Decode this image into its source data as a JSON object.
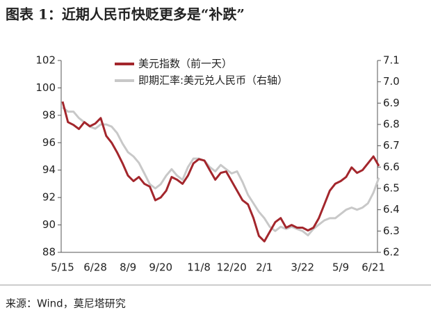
{
  "chart_data": {
    "type": "line",
    "title": "图表 1：近期人民币快贬更多是“补跌”",
    "source": "来源：Wind，莫尼塔研究",
    "categories": [
      "5/15",
      null,
      null,
      null,
      null,
      null,
      "6/28",
      null,
      null,
      null,
      null,
      null,
      "8/9",
      null,
      null,
      null,
      null,
      null,
      "9/20",
      null,
      null,
      null,
      null,
      null,
      null,
      "11/8",
      null,
      null,
      null,
      null,
      null,
      "12/20",
      null,
      null,
      null,
      null,
      null,
      "2/1",
      null,
      null,
      null,
      null,
      null,
      null,
      "3/22",
      null,
      null,
      null,
      null,
      null,
      null,
      "5/9",
      null,
      null,
      null,
      null,
      null,
      "6/21",
      null
    ],
    "series": [
      {
        "name": "美元指数（前一天）",
        "color": "#a3262c",
        "values": [
          99.0,
          97.5,
          97.3,
          97.0,
          97.5,
          97.2,
          97.4,
          97.8,
          96.5,
          96.0,
          95.3,
          94.5,
          93.6,
          93.2,
          93.5,
          93.0,
          92.8,
          91.8,
          92.0,
          92.5,
          93.5,
          93.3,
          93.0,
          93.6,
          94.5,
          94.8,
          94.7,
          94.0,
          93.3,
          93.8,
          93.9,
          93.2,
          92.5,
          91.8,
          91.5,
          90.5,
          89.2,
          88.8,
          89.5,
          90.2,
          90.5,
          89.8,
          90.0,
          89.8,
          89.8,
          89.6,
          89.8,
          90.5,
          91.5,
          92.5,
          93.0,
          93.2,
          93.5,
          94.2,
          93.8,
          94.0,
          94.5,
          95.0,
          94.3
        ]
      },
      {
        "name": "即期汇率:美元兑人民币（右轴）",
        "color": "#c8c8c8",
        "axis": "y2",
        "values": [
          6.88,
          6.86,
          6.86,
          6.83,
          6.81,
          6.79,
          6.78,
          6.8,
          6.8,
          6.79,
          6.76,
          6.71,
          6.67,
          6.65,
          6.62,
          6.57,
          6.52,
          6.5,
          6.52,
          6.56,
          6.59,
          6.56,
          6.54,
          6.6,
          6.64,
          6.64,
          6.63,
          6.6,
          6.58,
          6.61,
          6.59,
          6.57,
          6.58,
          6.53,
          6.47,
          6.43,
          6.39,
          6.36,
          6.32,
          6.3,
          6.32,
          6.31,
          6.32,
          6.31,
          6.3,
          6.28,
          6.31,
          6.33,
          6.35,
          6.36,
          6.36,
          6.38,
          6.4,
          6.41,
          6.4,
          6.41,
          6.43,
          6.48,
          6.55
        ]
      }
    ],
    "ylim": [
      88,
      102
    ],
    "yticks": [
      88,
      90,
      92,
      94,
      96,
      98,
      100,
      102
    ],
    "y2lim": [
      6.2,
      7.1
    ],
    "y2ticks": [
      6.2,
      6.3,
      6.4,
      6.5,
      6.6,
      6.7,
      6.8,
      6.9,
      {
        "value": 7,
        "label": "7.0"
      },
      7.1
    ],
    "legend": "upper-left"
  }
}
